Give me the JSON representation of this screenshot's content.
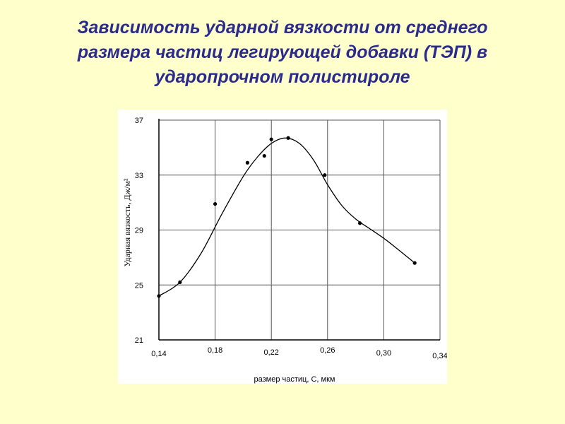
{
  "slide": {
    "title_lines": [
      "Зависимость ударной вязкости от среднего",
      "размера частиц легирующей добавки (ТЭП) в",
      "ударопрочном полистироле"
    ],
    "title_color": "#2b2b8c",
    "background": "#ffffcc"
  },
  "chart_data": {
    "type": "scatter",
    "title": "",
    "xlabel": "размер частиц, С, мкм",
    "ylabel": "Ударная вязкость, Дж/м²",
    "xlim": [
      0.14,
      0.34
    ],
    "ylim": [
      21,
      37
    ],
    "x_ticks": [
      0.14,
      0.18,
      0.22,
      0.26,
      0.3,
      0.34
    ],
    "x_tick_labels": [
      "0,14",
      "0,18",
      "0,22",
      "0,26",
      "0,30",
      "0,34"
    ],
    "y_ticks": [
      21,
      25,
      29,
      33,
      37
    ],
    "y_tick_labels": [
      "21",
      "25",
      "29",
      "33",
      "37"
    ],
    "grid": true,
    "series": [
      {
        "points": {
          "x": [
            0.14,
            0.155,
            0.18,
            0.203,
            0.215,
            0.22,
            0.232,
            0.258,
            0.283,
            0.322
          ],
          "y": [
            24.2,
            25.2,
            30.9,
            33.9,
            34.4,
            35.6,
            35.7,
            33.0,
            29.5,
            26.6
          ]
        },
        "curve": {
          "x": [
            0.14,
            0.155,
            0.17,
            0.185,
            0.2,
            0.21,
            0.22,
            0.23,
            0.24,
            0.25,
            0.26,
            0.27,
            0.28,
            0.29,
            0.3,
            0.31,
            0.322
          ],
          "y": [
            24.2,
            25.2,
            27.3,
            30.2,
            32.9,
            34.3,
            35.3,
            35.7,
            35.3,
            34.1,
            32.3,
            30.8,
            29.8,
            29.1,
            28.4,
            27.6,
            26.6
          ]
        }
      }
    ]
  }
}
